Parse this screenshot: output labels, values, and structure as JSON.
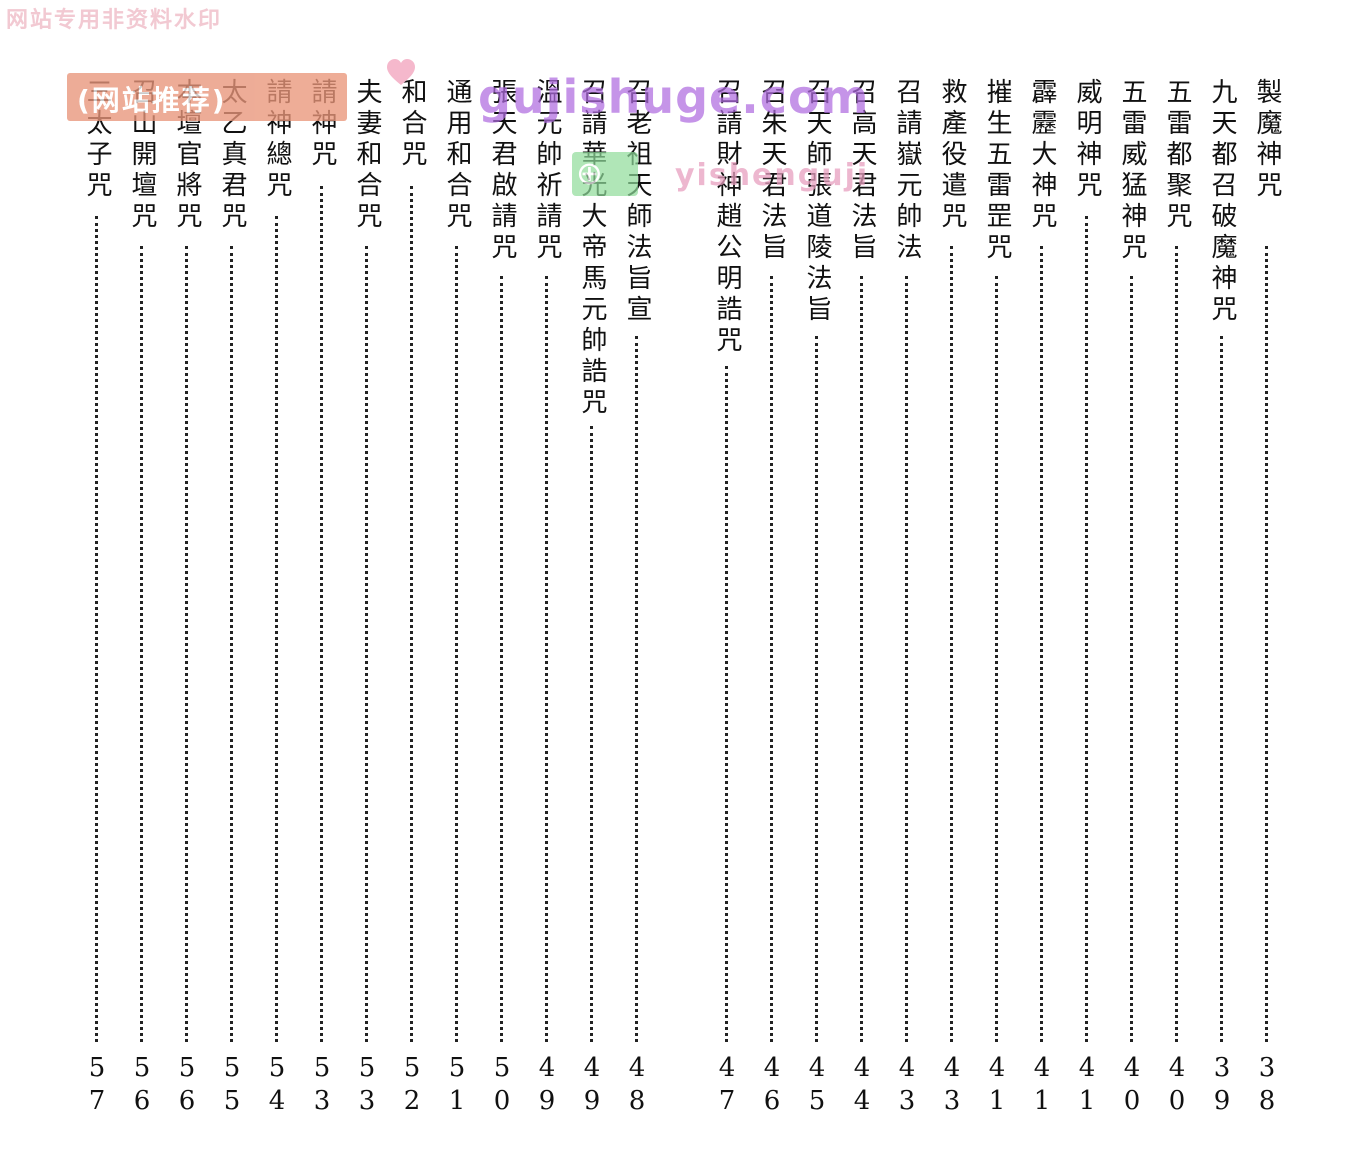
{
  "watermarks": {
    "top_banner": "网站专用非资料水印",
    "badge": "(网站推荐)",
    "site": "gujishuge.com",
    "sub": "yishenguji",
    "pin": "⊕"
  },
  "entries": [
    {
      "title": "製魔神咒",
      "page": "38"
    },
    {
      "title": "九天都召破魔神咒",
      "page": "39"
    },
    {
      "title": "五雷都聚咒",
      "page": "40"
    },
    {
      "title": "五雷威猛神咒",
      "page": "40"
    },
    {
      "title": "威明神咒",
      "page": "41"
    },
    {
      "title": "霹靂大神咒",
      "page": "41"
    },
    {
      "title": "摧生五雷罡咒",
      "page": "41"
    },
    {
      "title": "救產役遣咒",
      "page": "43"
    },
    {
      "title": "召請嶽元帥法",
      "page": "43"
    },
    {
      "title": "召高天君法旨",
      "page": "44"
    },
    {
      "title": "召天師張道陵法旨",
      "page": "45"
    },
    {
      "title": "召朱天君法旨",
      "page": "46"
    },
    {
      "title": "召請財神趙公明誥咒",
      "page": "47"
    },
    {
      "title": "召老祖天師法旨宣",
      "page": "48"
    },
    {
      "title": "召請華光大帝馬元帥誥咒",
      "page": "49"
    },
    {
      "title": "溫元帥祈請咒",
      "page": "49"
    },
    {
      "title": "張天君啟請咒",
      "page": "50"
    },
    {
      "title": "通用和合咒",
      "page": "51"
    },
    {
      "title": "和合咒",
      "page": "52"
    },
    {
      "title": "夫妻和合咒",
      "page": "53"
    },
    {
      "title": "請神咒",
      "page": "53"
    },
    {
      "title": "請神總咒",
      "page": "54"
    },
    {
      "title": "太乙真君咒",
      "page": "55"
    },
    {
      "title": "本壇官將咒",
      "page": "56"
    },
    {
      "title": "召山開壇咒",
      "page": "56"
    },
    {
      "title": "三太子咒",
      "page": "57"
    }
  ]
}
